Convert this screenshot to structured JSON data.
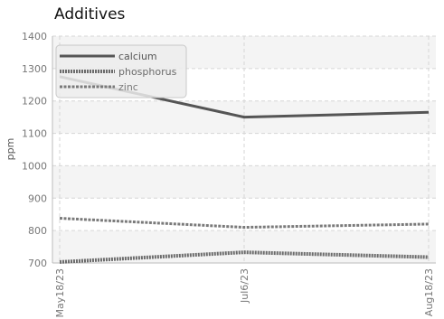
{
  "chart_data": {
    "type": "line",
    "title": "Additives",
    "ylabel": "ppm",
    "xlabel": "",
    "ylim": [
      700,
      1400
    ],
    "yticks": [
      700,
      800,
      900,
      1000,
      1100,
      1200,
      1300,
      1400
    ],
    "x": [
      "May18/23",
      "Jul6/23",
      "Aug18/23"
    ],
    "grid": true,
    "legend_position": "top-left",
    "series": [
      {
        "name": "calcium",
        "values": [
          1275,
          1150,
          1165
        ],
        "color": "#555555",
        "style": "solid"
      },
      {
        "name": "phosphorus",
        "values": [
          703,
          733,
          718
        ],
        "color": "#6b6b6b",
        "style": "dotted"
      },
      {
        "name": "zinc",
        "values": [
          838,
          810,
          820
        ],
        "color": "#7a7a7a",
        "style": "dashed"
      }
    ]
  }
}
